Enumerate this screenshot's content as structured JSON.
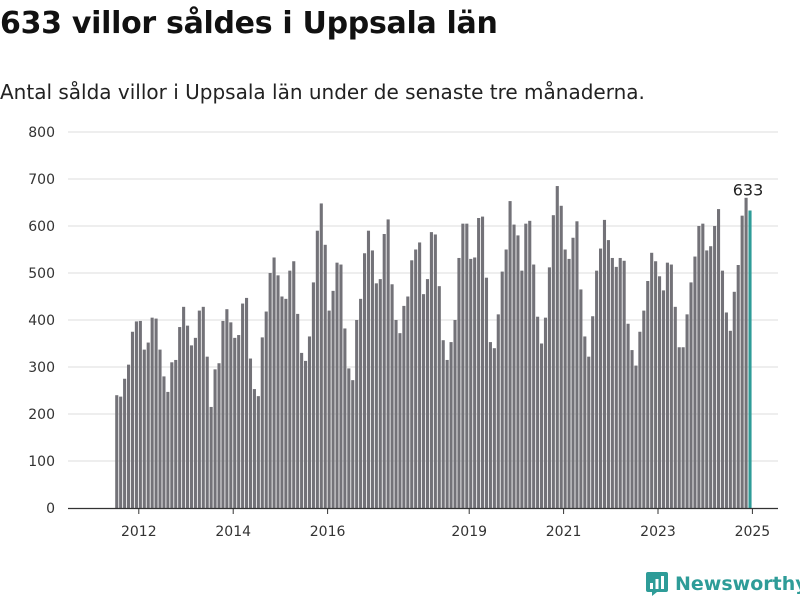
{
  "header": {
    "title": "633 villor såldes i Uppsala län",
    "subtitle": "Antal sålda villor i Uppsala län under de senaste tre månaderna."
  },
  "brand": {
    "name": "Newsworthy"
  },
  "colors": {
    "bar": "#737278",
    "highlight": "#2e9c98",
    "grid": "#dddddd",
    "text": "#333333"
  },
  "chart_data": {
    "type": "bar",
    "title": "633 villor såldes i Uppsala län",
    "subtitle": "Antal sålda villor i Uppsala län under de senaste tre månaderna.",
    "xlabel": "",
    "ylabel": "",
    "ylim": [
      0,
      800
    ],
    "yticks": [
      0,
      100,
      200,
      300,
      400,
      500,
      600,
      700,
      800
    ],
    "xticks": [
      "2012",
      "2014",
      "2016",
      "2019",
      "2021",
      "2023",
      "2025"
    ],
    "grid": true,
    "legend": "none",
    "series": [
      {
        "segment": "2012–2013",
        "start": "2012-01",
        "values": [
          240,
          237,
          275,
          305,
          375,
          397,
          398,
          337,
          352,
          405,
          403,
          337,
          280,
          247,
          310,
          315,
          385,
          428,
          388,
          346,
          362,
          420,
          428,
          322
        ]
      },
      {
        "segment": "2014–2016",
        "start": "2014-01",
        "values": [
          215,
          295,
          308,
          398,
          423,
          395,
          362,
          368,
          435,
          447,
          318,
          253,
          238,
          363,
          418,
          500,
          533,
          495,
          450,
          445,
          505,
          525,
          413,
          330,
          313,
          365,
          480,
          590,
          648,
          560,
          420,
          462,
          522,
          518
        ]
      },
      {
        "segment": "2016–2018",
        "start": "2016-11",
        "values": [
          382,
          297,
          272,
          400,
          445,
          542,
          590,
          548,
          478,
          487,
          583,
          614,
          476,
          400,
          372,
          430,
          450,
          527,
          550,
          565,
          455,
          487,
          587,
          582,
          472,
          357
        ]
      },
      {
        "segment": "2019–2024",
        "start": "2019-01",
        "values": [
          315,
          353,
          400,
          532,
          605,
          605,
          530,
          533,
          617,
          620,
          490,
          353,
          340,
          412,
          503,
          550,
          653,
          603,
          580,
          505,
          605,
          611,
          518,
          407,
          350,
          405,
          512,
          623,
          685,
          643,
          550,
          530,
          575,
          610,
          465,
          365,
          322,
          408,
          505,
          552,
          613,
          570,
          532,
          513,
          532,
          526,
          392,
          336,
          303,
          375,
          420,
          483,
          543,
          525,
          493,
          463,
          522,
          518,
          428,
          342,
          342,
          412,
          480,
          535,
          600,
          605,
          548,
          557,
          600,
          636,
          505,
          416,
          377,
          460,
          517,
          622,
          660
        ]
      },
      {
        "segment": "latest",
        "start": "2025-06",
        "highlight": true,
        "values": [
          633
        ]
      }
    ],
    "annotations": [
      {
        "text": "633",
        "target": "latest"
      }
    ]
  }
}
